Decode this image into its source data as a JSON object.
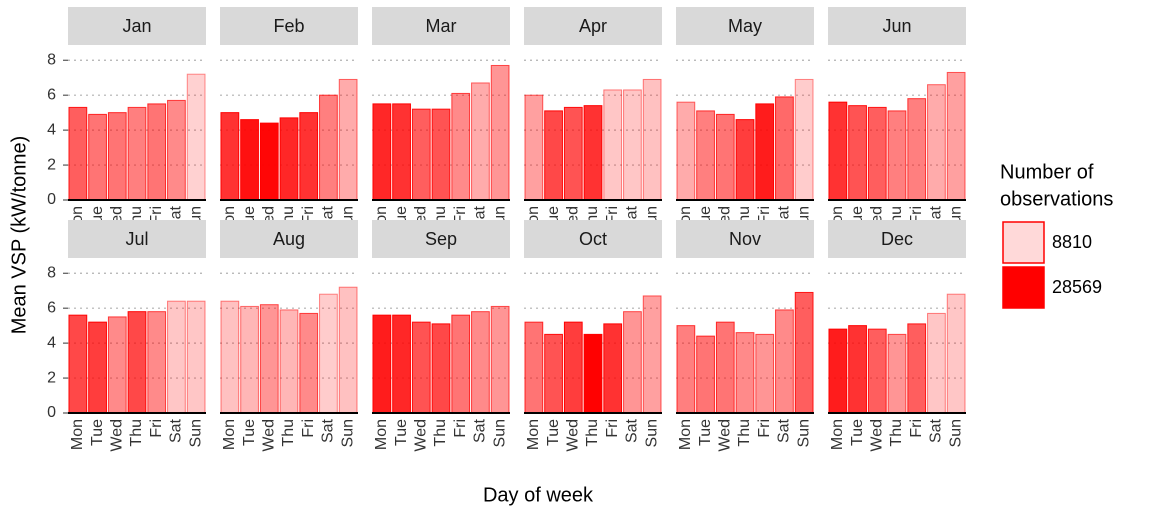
{
  "chart_data": {
    "type": "bar",
    "y_label": "Mean VSP (kW/tonne)",
    "x_label": "Day of week",
    "categories": [
      "Mon",
      "Tue",
      "Wed",
      "Thu",
      "Fri",
      "Sat",
      "Sun"
    ],
    "color": "#ff0000",
    "ylim": [
      0,
      8.7
    ],
    "yticks": [
      0,
      2,
      4,
      6,
      8
    ],
    "grid": true,
    "legend": {
      "title": [
        "Number of",
        "observations"
      ],
      "values": [
        8810,
        28569
      ],
      "position": "right"
    },
    "panels": [
      {
        "title": "Jan",
        "values": [
          5.3,
          4.9,
          5.0,
          5.3,
          5.5,
          5.7,
          7.2
        ],
        "counts": [
          20000,
          18000,
          18000,
          17000,
          18000,
          16000,
          9500
        ]
      },
      {
        "title": "Feb",
        "values": [
          5.0,
          4.6,
          4.4,
          4.7,
          5.0,
          6.0,
          6.9
        ],
        "counts": [
          24000,
          27000,
          28000,
          25000,
          24000,
          17000,
          13000
        ]
      },
      {
        "title": "Mar",
        "values": [
          5.5,
          5.5,
          5.2,
          5.2,
          6.1,
          6.7,
          7.7
        ],
        "counts": [
          25000,
          24000,
          20000,
          21000,
          16000,
          13000,
          15000
        ]
      },
      {
        "title": "Apr",
        "values": [
          6.0,
          5.1,
          5.3,
          5.4,
          6.3,
          6.3,
          6.9
        ],
        "counts": [
          14000,
          22000,
          21000,
          24000,
          10500,
          10500,
          11000
        ]
      },
      {
        "title": "May",
        "values": [
          5.6,
          5.1,
          4.9,
          4.6,
          5.5,
          5.9,
          6.9
        ],
        "counts": [
          13000,
          17000,
          18000,
          23000,
          26000,
          19000,
          10000
        ]
      },
      {
        "title": "Jun",
        "values": [
          5.6,
          5.4,
          5.3,
          5.1,
          5.8,
          6.6,
          7.3
        ],
        "counts": [
          24000,
          21000,
          20000,
          17000,
          17000,
          13000,
          14000
        ]
      },
      {
        "title": "Jul",
        "values": [
          5.6,
          5.2,
          5.5,
          5.8,
          5.8,
          6.4,
          6.4
        ],
        "counts": [
          22000,
          23000,
          16000,
          22000,
          16000,
          10500,
          10500
        ]
      },
      {
        "title": "Aug",
        "values": [
          6.4,
          6.1,
          6.2,
          5.9,
          5.7,
          6.8,
          7.2
        ],
        "counts": [
          11000,
          12000,
          15000,
          12000,
          16000,
          10000,
          11000
        ]
      },
      {
        "title": "Sep",
        "values": [
          5.6,
          5.6,
          5.2,
          5.1,
          5.6,
          5.8,
          6.1
        ],
        "counts": [
          26000,
          25000,
          21000,
          22000,
          18000,
          16000,
          15000
        ]
      },
      {
        "title": "Oct",
        "values": [
          5.2,
          4.5,
          5.2,
          4.5,
          5.1,
          5.8,
          6.7
        ],
        "counts": [
          18000,
          21000,
          23000,
          28500,
          24000,
          15000,
          14000
        ]
      },
      {
        "title": "Nov",
        "values": [
          5.0,
          4.4,
          5.2,
          4.6,
          4.5,
          5.9,
          6.9
        ],
        "counts": [
          17000,
          18000,
          18000,
          16000,
          15000,
          16000,
          20000
        ]
      },
      {
        "title": "Dec",
        "values": [
          4.8,
          5.0,
          4.8,
          4.5,
          5.1,
          5.7,
          6.8
        ],
        "counts": [
          26000,
          24000,
          20000,
          15000,
          20000,
          10500,
          10500
        ]
      }
    ]
  }
}
